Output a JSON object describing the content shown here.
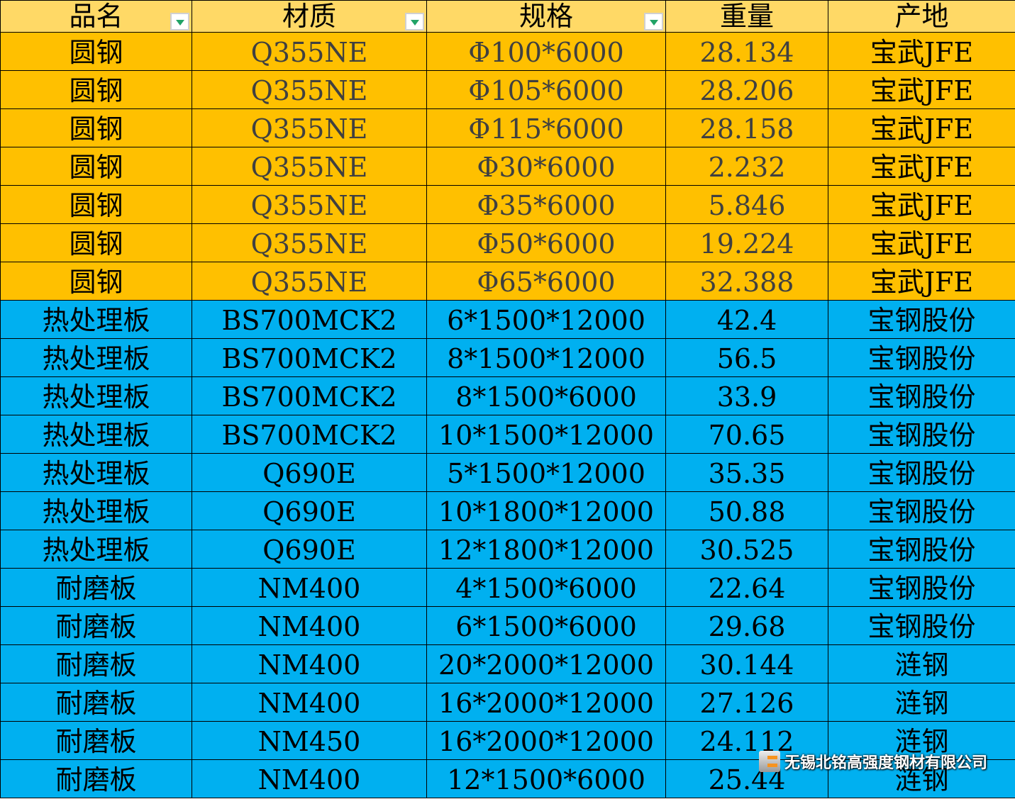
{
  "colors": {
    "header": "#FFD966",
    "group1": "#FFC000",
    "group2": "#00B0F0"
  },
  "headers": [
    "品名",
    "材质",
    "规格",
    "重量",
    "产地"
  ],
  "filter_columns": [
    0,
    1,
    2
  ],
  "rows": [
    [
      "圆钢",
      "Q355NE",
      "Φ100*6000",
      "28.134",
      "宝武JFE"
    ],
    [
      "圆钢",
      "Q355NE",
      "Φ105*6000",
      "28.206",
      "宝武JFE"
    ],
    [
      "圆钢",
      "Q355NE",
      "Φ115*6000",
      "28.158",
      "宝武JFE"
    ],
    [
      "圆钢",
      "Q355NE",
      "Φ30*6000",
      "2.232",
      "宝武JFE"
    ],
    [
      "圆钢",
      "Q355NE",
      "Φ35*6000",
      "5.846",
      "宝武JFE"
    ],
    [
      "圆钢",
      "Q355NE",
      "Φ50*6000",
      "19.224",
      "宝武JFE"
    ],
    [
      "圆钢",
      "Q355NE",
      "Φ65*6000",
      "32.388",
      "宝武JFE"
    ],
    [
      "热处理板",
      "BS700MCK2",
      "6*1500*12000",
      "42.4",
      "宝钢股份"
    ],
    [
      "热处理板",
      "BS700MCK2",
      "8*1500*12000",
      "56.5",
      "宝钢股份"
    ],
    [
      "热处理板",
      "BS700MCK2",
      "8*1500*6000",
      "33.9",
      "宝钢股份"
    ],
    [
      "热处理板",
      "BS700MCK2",
      "10*1500*12000",
      "70.65",
      "宝钢股份"
    ],
    [
      "热处理板",
      "Q690E",
      "5*1500*12000",
      "35.35",
      "宝钢股份"
    ],
    [
      "热处理板",
      "Q690E",
      "10*1800*12000",
      "50.88",
      "宝钢股份"
    ],
    [
      "热处理板",
      "Q690E",
      "12*1800*12000",
      "30.525",
      "宝钢股份"
    ],
    [
      "耐磨板",
      "NM400",
      "4*1500*6000",
      "22.64",
      "宝钢股份"
    ],
    [
      "耐磨板",
      "NM400",
      "6*1500*6000",
      "29.68",
      "宝钢股份"
    ],
    [
      "耐磨板",
      "NM400",
      "20*2000*12000",
      "30.144",
      "涟钢"
    ],
    [
      "耐磨板",
      "NM400",
      "16*2000*12000",
      "27.126",
      "涟钢"
    ],
    [
      "耐磨板",
      "NM450",
      "16*2000*12000",
      "24.112",
      "涟钢"
    ],
    [
      "耐磨板",
      "NM400",
      "12*1500*6000",
      "25.44",
      "涟钢"
    ]
  ],
  "watermark": "无锡北铭高强度钢材有限公司"
}
